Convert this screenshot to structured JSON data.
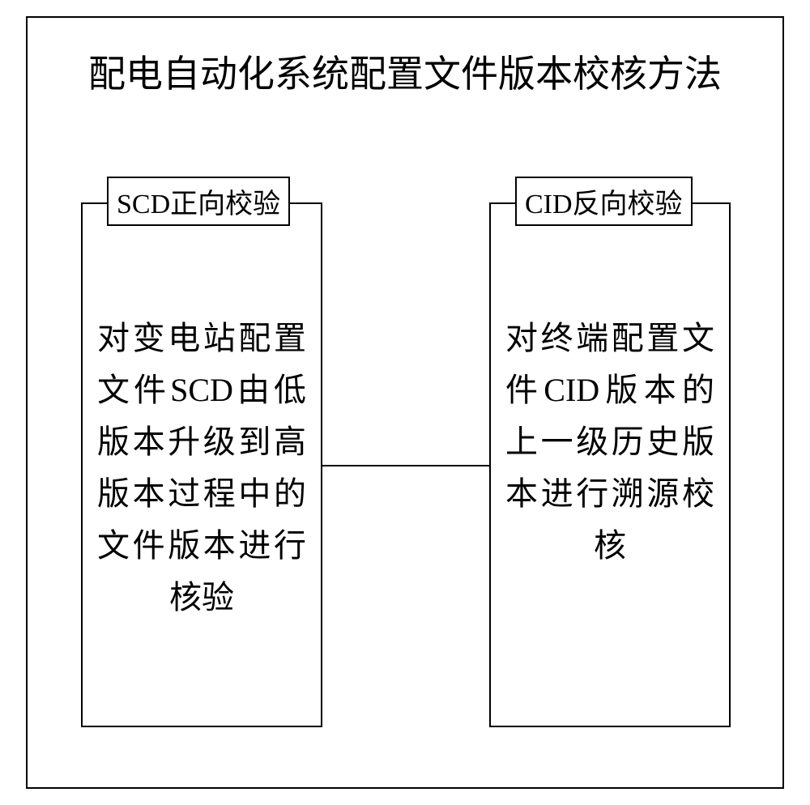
{
  "diagram": {
    "type": "flowchart",
    "title": "配电自动化系统配置文件版本校核方法",
    "background_color": "#ffffff",
    "border_color": "#000000",
    "text_color": "#000000",
    "title_fontsize": 46,
    "label_fontsize": 34,
    "content_fontsize": 40,
    "left_node": {
      "label": "SCD正向校验",
      "content": "对变电站配置文件SCD由低版本升级到高版本过程中的文件版本进行核验"
    },
    "right_node": {
      "label": "CID反向校验",
      "content": "对终端配置文件CID版本的上一级历史版本进行溯源校核"
    },
    "connector": {
      "from": "left_node",
      "to": "right_node"
    }
  }
}
